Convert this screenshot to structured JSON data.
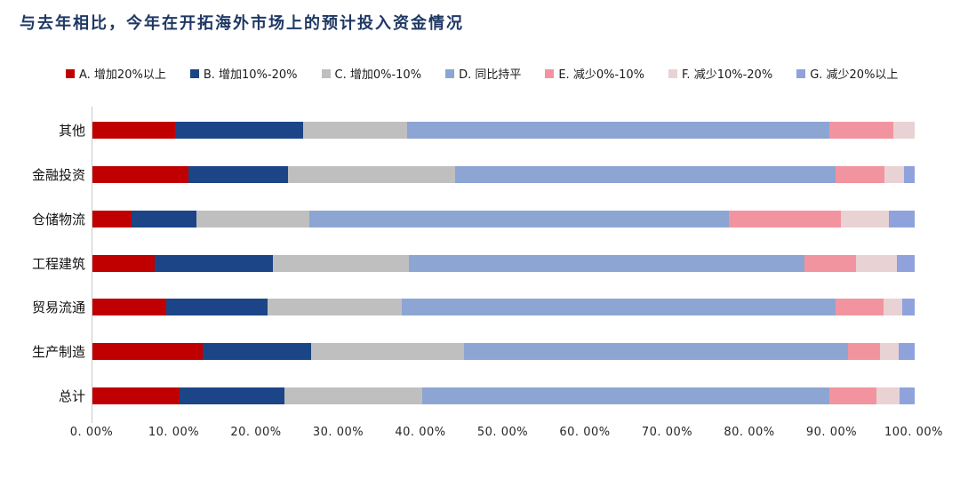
{
  "title": "与去年相比，今年在开拓海外市场上的预计投入资金情况",
  "colors": {
    "title": "#1F3864",
    "axis_line": "#C9C9C9",
    "tick_text": "#262626"
  },
  "chart_data": {
    "type": "bar",
    "orientation": "horizontal",
    "stacked": true,
    "unit": "percent",
    "title": "与去年相比，今年在开拓海外市场上的预计投入资金情况",
    "categories": [
      "其他",
      "金融投资",
      "仓储物流",
      "工程建筑",
      "贸易流通",
      "生产制造",
      "总计"
    ],
    "series": [
      {
        "name": "A. 增加20%以上",
        "color": "#C00000",
        "values": [
          10.0,
          11.7,
          4.8,
          7.6,
          9.0,
          13.4,
          10.6
        ]
      },
      {
        "name": "B. 增加10%-20%",
        "color": "#1C4587",
        "values": [
          15.6,
          12.1,
          7.9,
          14.4,
          12.3,
          13.2,
          12.7
        ]
      },
      {
        "name": "C. 增加0%-10%",
        "color": "#BFBFBF",
        "values": [
          12.7,
          20.3,
          13.7,
          16.5,
          16.3,
          18.6,
          16.8
        ]
      },
      {
        "name": "D. 同比持平",
        "color": "#8CA5D2",
        "values": [
          51.3,
          46.3,
          51.0,
          48.1,
          52.8,
          46.7,
          49.5
        ]
      },
      {
        "name": "E. 减少0%-10%",
        "color": "#F2949F",
        "values": [
          7.8,
          5.9,
          13.6,
          6.3,
          5.8,
          3.9,
          5.8
        ]
      },
      {
        "name": "F. 减少10%-20%",
        "color": "#E9D2D4",
        "values": [
          2.6,
          2.4,
          5.9,
          4.9,
          2.3,
          2.3,
          2.8
        ]
      },
      {
        "name": "G. 减少20%以上",
        "color": "#8FA2DC",
        "values": [
          0.0,
          1.3,
          3.1,
          2.2,
          1.5,
          1.9,
          1.8
        ]
      }
    ],
    "xlabel": "",
    "ylabel": "",
    "xlim": [
      0,
      100
    ],
    "x_tick_labels": [
      "0. 00%",
      "10. 00%",
      "20. 00%",
      "30. 00%",
      "40. 00%",
      "50. 00%",
      "60. 00%",
      "70. 00%",
      "80. 00%",
      "90. 00%",
      "100. 00%"
    ],
    "legend_position": "top",
    "grid": false
  }
}
